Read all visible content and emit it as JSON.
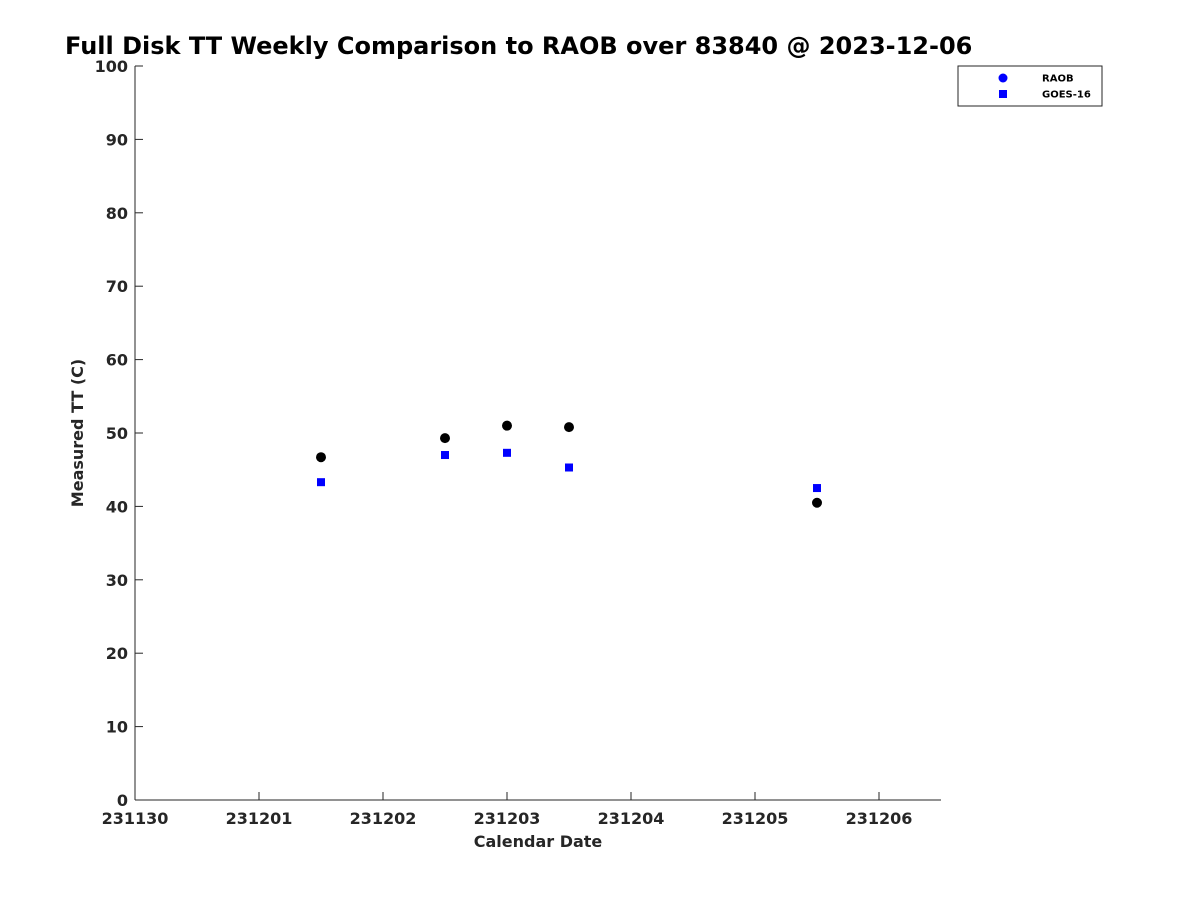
{
  "chart_data": {
    "type": "scatter",
    "title": "Full Disk TT Weekly Comparison to RAOB over 83840 @ 2023-12-06",
    "xlabel": "Calendar Date",
    "ylabel": "Measured TT (C)",
    "xlim": [
      "2023-11-30",
      "2023-12-06 12:00"
    ],
    "ylim": [
      0,
      100
    ],
    "xticks": [
      {
        "x": "2023-11-30",
        "label": "231130"
      },
      {
        "x": "2023-12-01",
        "label": "231201"
      },
      {
        "x": "2023-12-02",
        "label": "231202"
      },
      {
        "x": "2023-12-03",
        "label": "231203"
      },
      {
        "x": "2023-12-04",
        "label": "231204"
      },
      {
        "x": "2023-12-05",
        "label": "231205"
      },
      {
        "x": "2023-12-06",
        "label": "231206"
      }
    ],
    "yticks": [
      "0",
      "10",
      "20",
      "30",
      "40",
      "50",
      "60",
      "70",
      "80",
      "90",
      "100"
    ],
    "grid": false,
    "legend_position": "top-right",
    "series": [
      {
        "name": "RAOB",
        "marker": "circle",
        "color": "#000000",
        "legend_color": "#0000ff",
        "points": [
          {
            "x": "2023-12-01 12:00",
            "y": 46.7
          },
          {
            "x": "2023-12-02 12:00",
            "y": 49.3
          },
          {
            "x": "2023-12-03 00:00",
            "y": 51.0
          },
          {
            "x": "2023-12-03 12:00",
            "y": 50.8
          },
          {
            "x": "2023-12-05 12:00",
            "y": 40.5
          }
        ]
      },
      {
        "name": "GOES-16",
        "marker": "square",
        "color": "#0000ff",
        "legend_color": "#0000ff",
        "points": [
          {
            "x": "2023-12-01 12:00",
            "y": 43.3
          },
          {
            "x": "2023-12-02 12:00",
            "y": 47.0
          },
          {
            "x": "2023-12-03 00:00",
            "y": 47.3
          },
          {
            "x": "2023-12-03 12:00",
            "y": 45.3
          },
          {
            "x": "2023-12-05 12:00",
            "y": 42.5
          }
        ]
      }
    ]
  }
}
